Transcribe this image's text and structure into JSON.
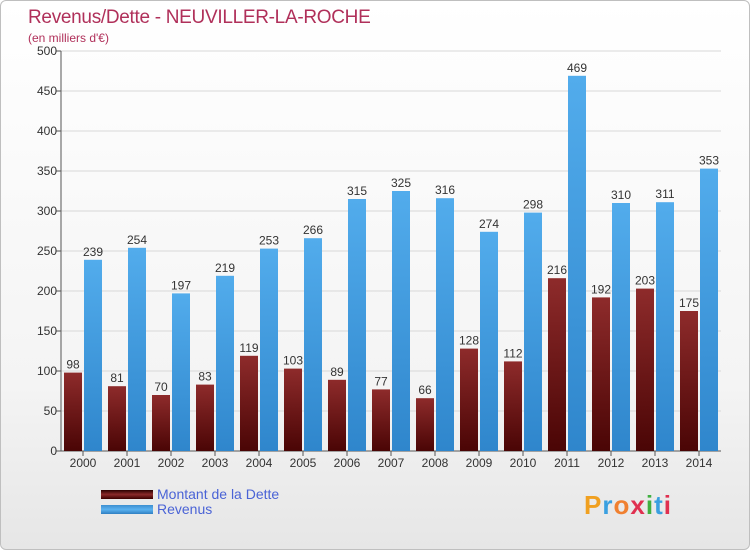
{
  "header": {
    "title": "Revenus/Dette - NEUVILLER-LA-ROCHE",
    "subtitle": "(en milliers d'€)"
  },
  "chart_data": {
    "type": "bar",
    "title": "Revenus/Dette - NEUVILLER-LA-ROCHE",
    "subtitle": "(en milliers d'€)",
    "categories": [
      "2000",
      "2001",
      "2002",
      "2003",
      "2004",
      "2005",
      "2006",
      "2007",
      "2008",
      "2009",
      "2010",
      "2011",
      "2012",
      "2013",
      "2014"
    ],
    "series": [
      {
        "name": "Montant de la Dette",
        "color": "#7a1a1a",
        "values": [
          98,
          81,
          70,
          83,
          119,
          103,
          89,
          77,
          66,
          128,
          112,
          216,
          192,
          203,
          175
        ]
      },
      {
        "name": "Revenus",
        "color": "#4ba3e3",
        "values": [
          239,
          254,
          197,
          219,
          253,
          266,
          315,
          325,
          316,
          274,
          298,
          469,
          310,
          311,
          353
        ]
      }
    ],
    "ylim": [
      0,
      500
    ],
    "yticks": [
      0,
      50,
      100,
      150,
      200,
      250,
      300,
      350,
      400,
      450,
      500
    ],
    "grid": true,
    "legend_position": "bottom-left"
  },
  "legend": {
    "items": [
      "Montant de la Dette",
      "Revenus"
    ]
  },
  "logo": {
    "letters": [
      "P",
      "r",
      "o",
      "x",
      "i",
      "t",
      "i"
    ],
    "colors": [
      "#f0a020",
      "#3aa0e0",
      "#f08030",
      "#e03050",
      "#40b040",
      "#3aa0e0",
      "#e03050"
    ]
  }
}
